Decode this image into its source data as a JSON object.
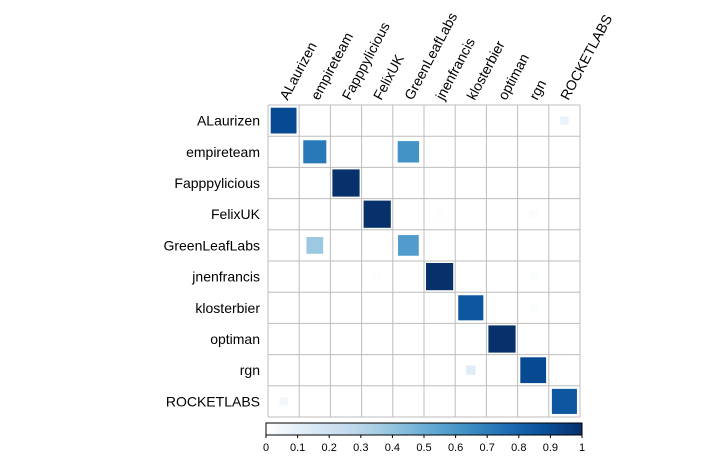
{
  "chart_data": {
    "type": "heatmap",
    "labels": [
      "ALaurizen",
      "empireteam",
      "Fapppylicious",
      "FelixUK",
      "GreenLeafLabs",
      "jnenfrancis",
      "klosterbier",
      "optiman",
      "rgn",
      "ROCKETLABS"
    ],
    "values": [
      [
        0.9,
        0,
        0,
        0,
        0,
        0,
        0,
        0,
        0,
        0.08
      ],
      [
        0,
        0.72,
        0,
        0,
        0.62,
        0,
        0,
        0,
        0,
        0
      ],
      [
        0,
        0,
        1.0,
        0,
        0,
        0,
        0,
        0,
        0,
        0
      ],
      [
        0,
        0,
        0,
        1.0,
        0,
        0.01,
        0,
        0,
        0.02,
        0
      ],
      [
        0,
        0.38,
        0,
        0,
        0.58,
        0,
        0,
        0,
        0,
        0
      ],
      [
        0,
        0,
        0,
        0.01,
        0,
        1.0,
        0,
        0,
        0.02,
        0
      ],
      [
        0,
        0,
        0,
        0,
        0,
        0,
        0.85,
        0,
        0.02,
        0
      ],
      [
        0,
        0,
        0,
        0,
        0,
        0,
        0,
        1.0,
        0,
        0
      ],
      [
        0,
        0,
        0,
        0,
        0,
        0,
        0.12,
        0,
        0.9,
        0
      ],
      [
        0.05,
        0,
        0,
        0,
        0,
        0,
        0,
        0,
        0,
        0.85
      ]
    ],
    "colorbar_ticks": [
      "0",
      "0.1",
      "0.2",
      "0.3",
      "0.4",
      "0.5",
      "0.6",
      "0.7",
      "0.8",
      "0.9",
      "1"
    ],
    "color_range": [
      0,
      1
    ],
    "color_scale": [
      "#ffffff",
      "#deebf7",
      "#c6dbef",
      "#9ecae1",
      "#6baed6",
      "#4292c6",
      "#2171b5",
      "#08519c",
      "#08306b"
    ],
    "grid": true,
    "legend": "bottom"
  }
}
